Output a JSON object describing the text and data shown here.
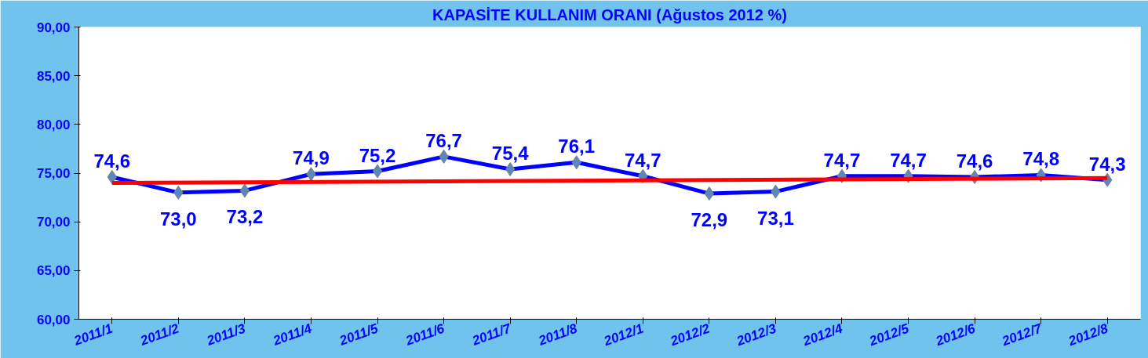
{
  "chart_data": {
    "type": "line",
    "title": "KAPASİTE KULLANIM ORANI (Ağustos 2012 %)",
    "categories": [
      "2011/1",
      "2011/2",
      "2011/3",
      "2011/4",
      "2011/5",
      "2011/6",
      "2011/7",
      "2011/8",
      "2012/1",
      "2012/2",
      "2012/3",
      "2012/4",
      "2012/5",
      "2012/6",
      "2012/7",
      "2012/8"
    ],
    "series": [
      {
        "color": "#0000ff",
        "values": [
          74.6,
          73.0,
          73.2,
          74.9,
          75.2,
          76.7,
          75.4,
          76.1,
          74.7,
          72.9,
          73.1,
          74.7,
          74.7,
          74.6,
          74.8,
          74.3
        ],
        "marker": "diamond",
        "value_labels": [
          "74,6",
          "73,0",
          "73,2",
          "74,9",
          "75,2",
          "76,7",
          "75,4",
          "76,1",
          "74,7",
          "72,9",
          "73,1",
          "74,7",
          "74,7",
          "74,6",
          "74,8",
          "74,3"
        ]
      },
      {
        "type": "line",
        "color": "#ff0000",
        "x": [
          "2011/1",
          "2012/8"
        ],
        "values": [
          74.0,
          74.5
        ],
        "marker": "none"
      }
    ],
    "ylim": [
      60,
      90
    ],
    "yticks": [
      {
        "value": 60,
        "label": "60,00"
      },
      {
        "value": 65,
        "label": "65,00"
      },
      {
        "value": 70,
        "label": "70,00"
      },
      {
        "value": 75,
        "label": "75,00"
      },
      {
        "value": 80,
        "label": "80,00"
      },
      {
        "value": 85,
        "label": "85,00"
      },
      {
        "value": 90,
        "label": "90,00"
      }
    ],
    "grid": false
  }
}
